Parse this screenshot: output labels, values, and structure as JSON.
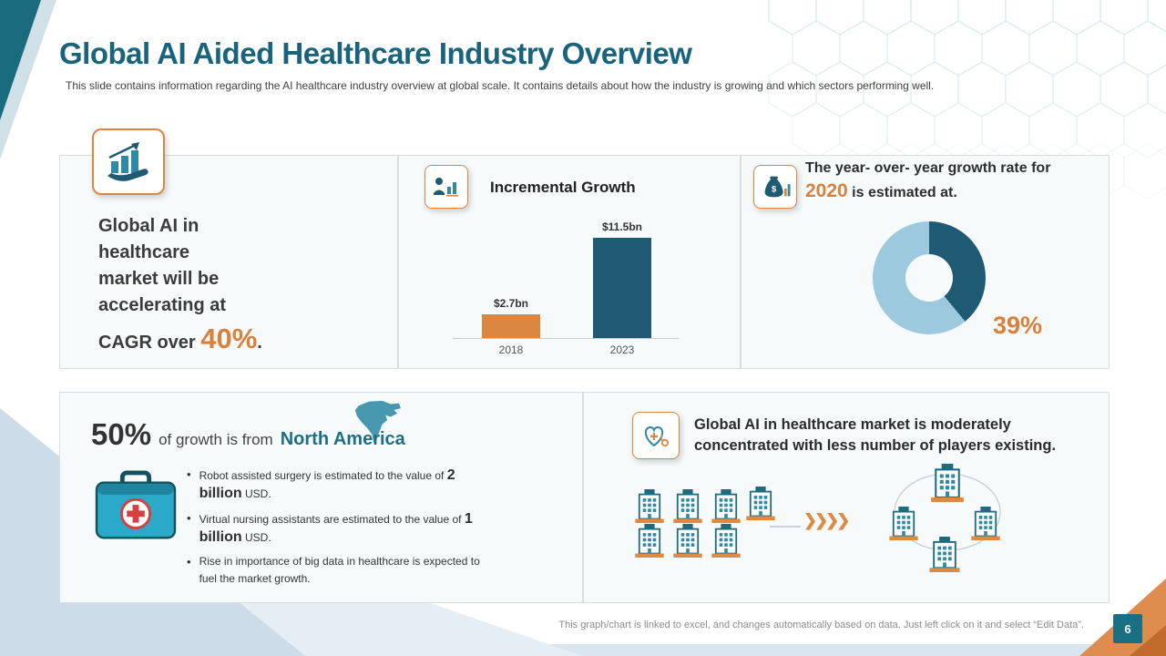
{
  "slide": {
    "title": "Global AI Aided Healthcare Industry Overview",
    "subtitle": "This slide contains information regarding the AI healthcare industry overview at global scale. It contains details about how the industry is growing and which sectors performing well.",
    "footer_note": "This graph/chart is linked to excel, and changes automatically based on data. Just left click on it and select “Edit Data”.",
    "page_number": "6"
  },
  "cards": {
    "cagr": {
      "line1": "Global AI in",
      "line2": "healthcare",
      "line3": "market will be",
      "line4": "accelerating at",
      "prefix": "CAGR over ",
      "value": "40%",
      "suffix": "."
    },
    "incremental": {
      "title": "Incremental Growth"
    },
    "yoy": {
      "line1": "The year- over- year growth rate for",
      "year": "2020",
      "line2": " is estimated at.",
      "donut_label": "39%"
    },
    "north_america": {
      "pct": "50%",
      "mid": "of growth is from",
      "region": "North America",
      "bullets": [
        {
          "pre": "Robot assisted surgery is estimated to the value of ",
          "bold": "2 billion",
          "post": " USD."
        },
        {
          "pre": "Virtual nursing assistants are estimated to the value of ",
          "bold": "1 billion",
          "post": " USD."
        },
        {
          "pre": "Rise in importance of big data in healthcare is expected to fuel the market growth.",
          "bold": "",
          "post": ""
        }
      ]
    },
    "concentration": {
      "text": "Global AI in healthcare market is moderately concentrated with less number of players existing."
    }
  },
  "chart_data": [
    {
      "type": "bar",
      "title": "Incremental Growth",
      "categories": [
        "2018",
        "2023"
      ],
      "values": [
        2.7,
        11.5
      ],
      "value_labels": [
        "$2.7bn",
        "$11.5bn"
      ],
      "unit": "USD billions",
      "colors": [
        "#DB8742",
        "#1F5A73"
      ],
      "ylim": [
        0,
        11.5
      ],
      "grid": false,
      "legend": false
    },
    {
      "type": "pie",
      "title": "Year-over-year growth rate for 2020",
      "labels": [
        "Estimated growth rate",
        "Remaining"
      ],
      "values": [
        39,
        61
      ],
      "annotation": "39%",
      "center_hole": true,
      "colors": [
        "#1F5A73",
        "#9DC9DF"
      ]
    }
  ],
  "icons": {
    "card1": "growth-chart-hand-icon",
    "card2": "doctor-analytics-icon",
    "card3": "money-bag-icon",
    "card4_map": "north-america-map-icon",
    "card4_kit": "medical-kit-icon",
    "card5": "heart-stethoscope-icon"
  },
  "colors": {
    "accent_teal": "#19647C",
    "accent_orange": "#D9813C",
    "bar_dark": "#1F5A73",
    "donut_light": "#9DC9DF"
  }
}
